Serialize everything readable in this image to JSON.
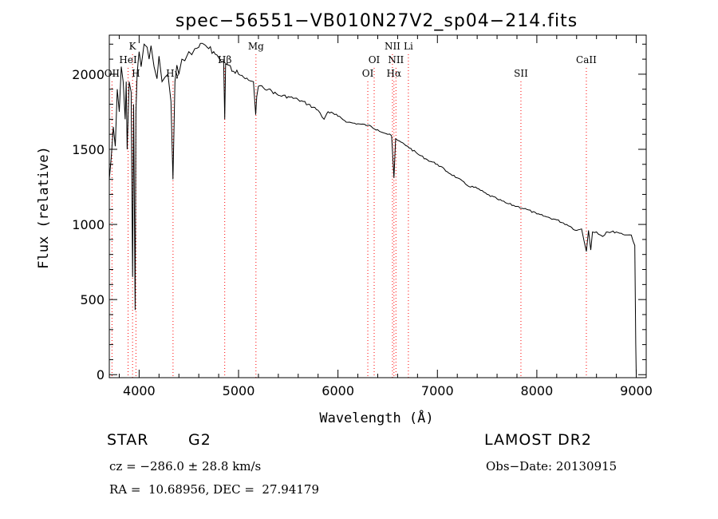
{
  "chart_data": {
    "type": "line",
    "title": "spec−56551−VB010N27V2_sp04−214.fits",
    "xlabel": "Wavelength (Å)",
    "ylabel": "Flux (relative)",
    "xlim": [
      3700,
      9100
    ],
    "ylim": [
      -20,
      2260
    ],
    "x_ticks": [
      4000,
      5000,
      6000,
      7000,
      8000,
      9000
    ],
    "y_ticks": [
      0,
      500,
      1000,
      1500,
      2000
    ],
    "grid": false,
    "series": [
      {
        "name": "flux",
        "x": [
          3700,
          3720,
          3740,
          3760,
          3780,
          3800,
          3820,
          3840,
          3860,
          3870,
          3880,
          3900,
          3920,
          3934,
          3945,
          3960,
          3968,
          3980,
          3990,
          4000,
          4020,
          4050,
          4080,
          4100,
          4120,
          4150,
          4180,
          4200,
          4230,
          4260,
          4290,
          4320,
          4340,
          4360,
          4380,
          4400,
          4430,
          4460,
          4500,
          4530,
          4560,
          4600,
          4650,
          4700,
          4750,
          4800,
          4830,
          4850,
          4861,
          4870,
          4900,
          4950,
          5000,
          5050,
          5100,
          5150,
          5172,
          5183,
          5200,
          5250,
          5300,
          5400,
          5500,
          5600,
          5700,
          5800,
          5860,
          5890,
          5900,
          6000,
          6100,
          6200,
          6300,
          6400,
          6500,
          6540,
          6563,
          6580,
          6600,
          6700,
          6800,
          6900,
          7000,
          7100,
          7200,
          7300,
          7400,
          7500,
          7600,
          7700,
          7800,
          7900,
          8000,
          8100,
          8200,
          8300,
          8350,
          8400,
          8450,
          8498,
          8520,
          8542,
          8560,
          8600,
          8662,
          8700,
          8800,
          8900,
          8950,
          8985,
          8995,
          9000
        ],
        "y": [
          1300,
          1450,
          1650,
          1520,
          1900,
          1750,
          2050,
          1950,
          1700,
          1950,
          1500,
          1950,
          1880,
          650,
          1800,
          430,
          1750,
          2000,
          2080,
          2150,
          2050,
          2200,
          2180,
          2100,
          2190,
          2050,
          1970,
          2120,
          1950,
          1980,
          2000,
          1820,
          1300,
          1950,
          2060,
          2000,
          2100,
          2090,
          2150,
          2130,
          2170,
          2180,
          2200,
          2170,
          2150,
          2110,
          2080,
          2090,
          1700,
          2070,
          2060,
          2020,
          2000,
          1980,
          1960,
          1950,
          1730,
          1850,
          1920,
          1910,
          1900,
          1860,
          1850,
          1830,
          1800,
          1760,
          1700,
          1740,
          1750,
          1720,
          1680,
          1670,
          1660,
          1630,
          1600,
          1590,
          1310,
          1570,
          1560,
          1520,
          1470,
          1430,
          1400,
          1350,
          1310,
          1260,
          1240,
          1200,
          1170,
          1140,
          1120,
          1100,
          1070,
          1050,
          1030,
          1000,
          980,
          960,
          970,
          820,
          960,
          830,
          950,
          950,
          920,
          950,
          950,
          930,
          930,
          860,
          200,
          0
        ]
      }
    ],
    "annotations": [
      {
        "label": "OII",
        "x": 3727,
        "row": 3
      },
      {
        "label": "HeI",
        "x": 3889,
        "row": 2
      },
      {
        "label": "K",
        "x": 3934,
        "row": 1
      },
      {
        "label": "H",
        "x": 3968,
        "row": 3
      },
      {
        "label": "Hγ",
        "x": 4341,
        "row": 3
      },
      {
        "label": "Hβ",
        "x": 4861,
        "row": 2
      },
      {
        "label": "Mg",
        "x": 5175,
        "row": 1
      },
      {
        "label": "OI",
        "x": 6300,
        "row": 3
      },
      {
        "label": "OI",
        "x": 6364,
        "row": 2
      },
      {
        "label": "NII",
        "x": 6548,
        "row": 1
      },
      {
        "label": "Hα",
        "x": 6563,
        "row": 3
      },
      {
        "label": "NII",
        "x": 6583,
        "row": 2
      },
      {
        "label": "Li",
        "x": 6708,
        "row": 1
      },
      {
        "label": "SII",
        "x": 7840,
        "row": 3
      },
      {
        "label": "CaII",
        "x": 8498,
        "row": 2
      }
    ]
  },
  "footer": {
    "object_type": "STAR",
    "subclass": "G2",
    "survey": "LAMOST DR2",
    "redshift": "cz = −286.0 ± 28.8 km/s",
    "obs_date": "Obs−Date: 20130915",
    "coordinates": "RA =  10.68956, DEC =  27.94179"
  },
  "colors": {
    "spectrum": "#000000",
    "line_markers": "#ff0000",
    "axes": "#000000"
  }
}
